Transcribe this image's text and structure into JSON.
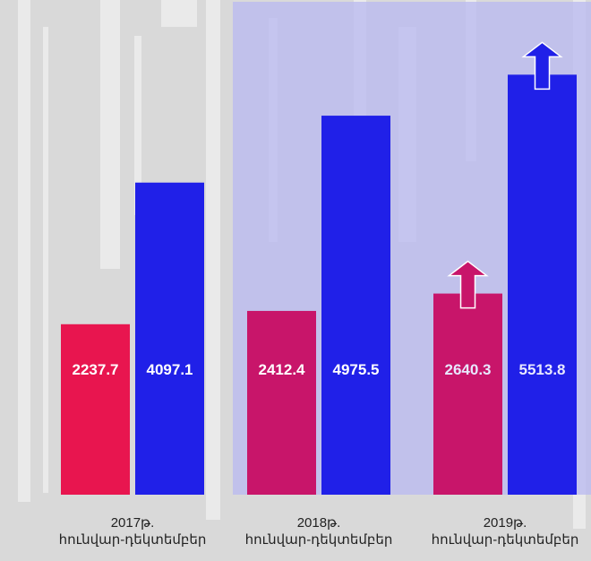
{
  "chart_data": {
    "type": "bar",
    "categories": [
      [
        "2017թ.",
        "հունվար-դեկտեմբեր"
      ],
      [
        "2018թ.",
        "հունվար-դեկտեմբեր"
      ],
      [
        "2019թ.",
        "հունվար-դեկտեմբեր"
      ]
    ],
    "series": [
      {
        "values": [
          2237.7,
          2412.4,
          2640.3
        ],
        "colors": [
          "#e8154f",
          "#c8156a",
          "#c8156a"
        ]
      },
      {
        "values": [
          4097.1,
          4975.5,
          5513.8
        ],
        "color": "#2020e8"
      }
    ],
    "labels": [
      [
        "2237.7",
        "2412.4",
        "2640.3"
      ],
      [
        "4097.1",
        "4975.5",
        "5513.8"
      ]
    ],
    "label_colors": [
      "#ffffff",
      "#ffffff",
      "#e8e8ff"
    ],
    "ylim": [
      0,
      6000
    ],
    "arrows": [
      {
        "category": 2,
        "series": 0,
        "color": "#c8156a"
      },
      {
        "category": 2,
        "series": 1,
        "color": "#2020e8"
      }
    ],
    "highlight": {
      "from_category": 1,
      "color": "#b8b8f0"
    },
    "background": "#d9d9d9",
    "grid": false,
    "legend": "none"
  }
}
